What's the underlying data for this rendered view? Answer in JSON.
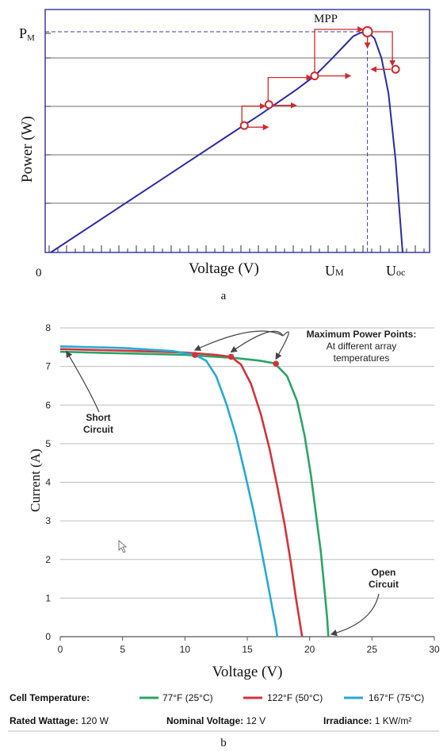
{
  "chart_data": [
    {
      "type": "line",
      "title": "",
      "xlabel": "Voltage (V)",
      "ylabel": "Power (W)",
      "x_ticks_text": {
        "origin": "0",
        "um": "U",
        "um_sub": "M",
        "uoc": "U",
        "uoc_sub": "oc"
      },
      "y_ticks_text": {
        "pm": "P",
        "pm_sub": "M"
      },
      "mpp_label": "MPP",
      "caption": "a",
      "colors": {
        "curve": "#2a2aa8",
        "frame": "#3b3bb0",
        "grid": "#6d6d6d",
        "tracking": "#d0292b"
      },
      "series": [
        {
          "x": [
            0,
            0.1,
            0.2,
            0.3,
            0.4,
            0.5,
            0.6,
            0.7,
            0.75,
            0.8,
            0.83,
            0.86,
            0.88,
            0.9,
            0.92,
            0.94,
            0.96,
            0.98,
            1.0
          ],
          "y": [
            0,
            0.105,
            0.21,
            0.315,
            0.42,
            0.525,
            0.63,
            0.74,
            0.8,
            0.88,
            0.93,
            0.98,
            0.995,
            1.0,
            0.97,
            0.88,
            0.72,
            0.42,
            0.0
          ]
        }
      ],
      "tracking_points": [
        {
          "x": 0.55,
          "y": 0.575
        },
        {
          "x": 0.62,
          "y": 0.67
        },
        {
          "x": 0.75,
          "y": 0.8
        },
        {
          "x": 0.9,
          "y": 1.0
        },
        {
          "x": 0.98,
          "y": 0.83
        }
      ]
    },
    {
      "type": "line",
      "title": "",
      "xlabel": "Voltage (V)",
      "ylabel": "Current (A)",
      "caption": "b",
      "xlim": [
        0,
        30
      ],
      "ylim": [
        0,
        8
      ],
      "x_ticks": [
        "0",
        "5",
        "10",
        "15",
        "20",
        "25",
        "30"
      ],
      "y_ticks": [
        "0",
        "1",
        "2",
        "3",
        "4",
        "5",
        "6",
        "7",
        "8"
      ],
      "grid": true,
      "annotations": {
        "mpp": "Maximum Power Points:",
        "mpp_sub1": "At different array",
        "mpp_sub2": "temperatures",
        "short1": "Short",
        "short2": "Circuit",
        "open1": "Open",
        "open2": "Circuit"
      },
      "legend": {
        "title": "Cell Temperature:",
        "items": [
          "77°F (25°C)",
          "122°F (50°C)",
          "167°F (75°C)"
        ],
        "wattage_label": "Rated Wattage:",
        "wattage_value": "120 W",
        "voltage_label": "Nominal Voltage:",
        "voltage_value": "12 V",
        "irradiance_label": "Irradiance:",
        "irradiance_value": "1 KW/m²"
      },
      "series": [
        {
          "name": "77°F (25°C)",
          "color": "#2aa567",
          "x": [
            0,
            5,
            10,
            14,
            16,
            17.2,
            18.2,
            19.0,
            19.6,
            20.1,
            20.5,
            20.9,
            21.2,
            21.4,
            21.5
          ],
          "y": [
            7.38,
            7.34,
            7.3,
            7.22,
            7.15,
            7.08,
            6.75,
            6.1,
            5.2,
            4.2,
            3.2,
            2.2,
            1.2,
            0.5,
            0
          ]
        },
        {
          "name": "122°F (50°C)",
          "color": "#d2333c",
          "x": [
            0,
            5,
            10,
            12.5,
            13.7,
            14.5,
            15.3,
            16.1,
            16.8,
            17.4,
            18.0,
            18.5,
            18.9,
            19.2,
            19.4
          ],
          "y": [
            7.45,
            7.41,
            7.36,
            7.3,
            7.25,
            7.05,
            6.55,
            5.75,
            4.85,
            3.9,
            2.9,
            1.9,
            1.0,
            0.4,
            0
          ]
        },
        {
          "name": "167°F (75°C)",
          "color": "#27a9d8",
          "x": [
            0,
            5,
            9,
            10.8,
            11.7,
            12.5,
            13.3,
            14.1,
            14.8,
            15.5,
            16.1,
            16.6,
            17.0,
            17.3,
            17.4
          ],
          "y": [
            7.52,
            7.48,
            7.4,
            7.3,
            7.15,
            6.75,
            6.05,
            5.2,
            4.25,
            3.25,
            2.3,
            1.45,
            0.75,
            0.25,
            0
          ]
        }
      ],
      "max_power_points": [
        {
          "x": 17.3,
          "y": 7.07,
          "color": "#d2333c"
        },
        {
          "x": 13.7,
          "y": 7.25,
          "color": "#d2333c"
        },
        {
          "x": 10.8,
          "y": 7.3,
          "color": "#d2333c"
        }
      ]
    }
  ]
}
